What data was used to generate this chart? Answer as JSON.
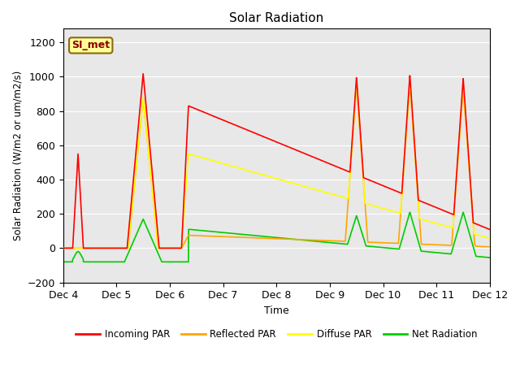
{
  "title": "Solar Radiation",
  "ylabel": "Solar Radiation (W/m2 or um/m2/s)",
  "xlabel": "Time",
  "ylim": [
    -200,
    1280
  ],
  "yticks": [
    -200,
    0,
    200,
    400,
    600,
    800,
    1000,
    1200
  ],
  "label_text": "SI_met",
  "bg_color": "#e8e8e8",
  "fig_color": "#ffffff",
  "line_colors": {
    "incoming": "#ff0000",
    "reflected": "#ffa500",
    "diffuse": "#ffff00",
    "net": "#00cc00"
  },
  "legend_labels": [
    "Incoming PAR",
    "Reflected PAR",
    "Diffuse PAR",
    "Net Radiation"
  ],
  "x_tick_labels": [
    "Dec 4",
    "Dec 5",
    "Dec 6",
    "Dec 7",
    "Dec 8",
    "Dec 9",
    "Dec 10",
    "Dec 11",
    "Dec 12"
  ],
  "x_tick_positions": [
    0,
    1,
    2,
    3,
    4,
    5,
    6,
    7,
    8
  ]
}
